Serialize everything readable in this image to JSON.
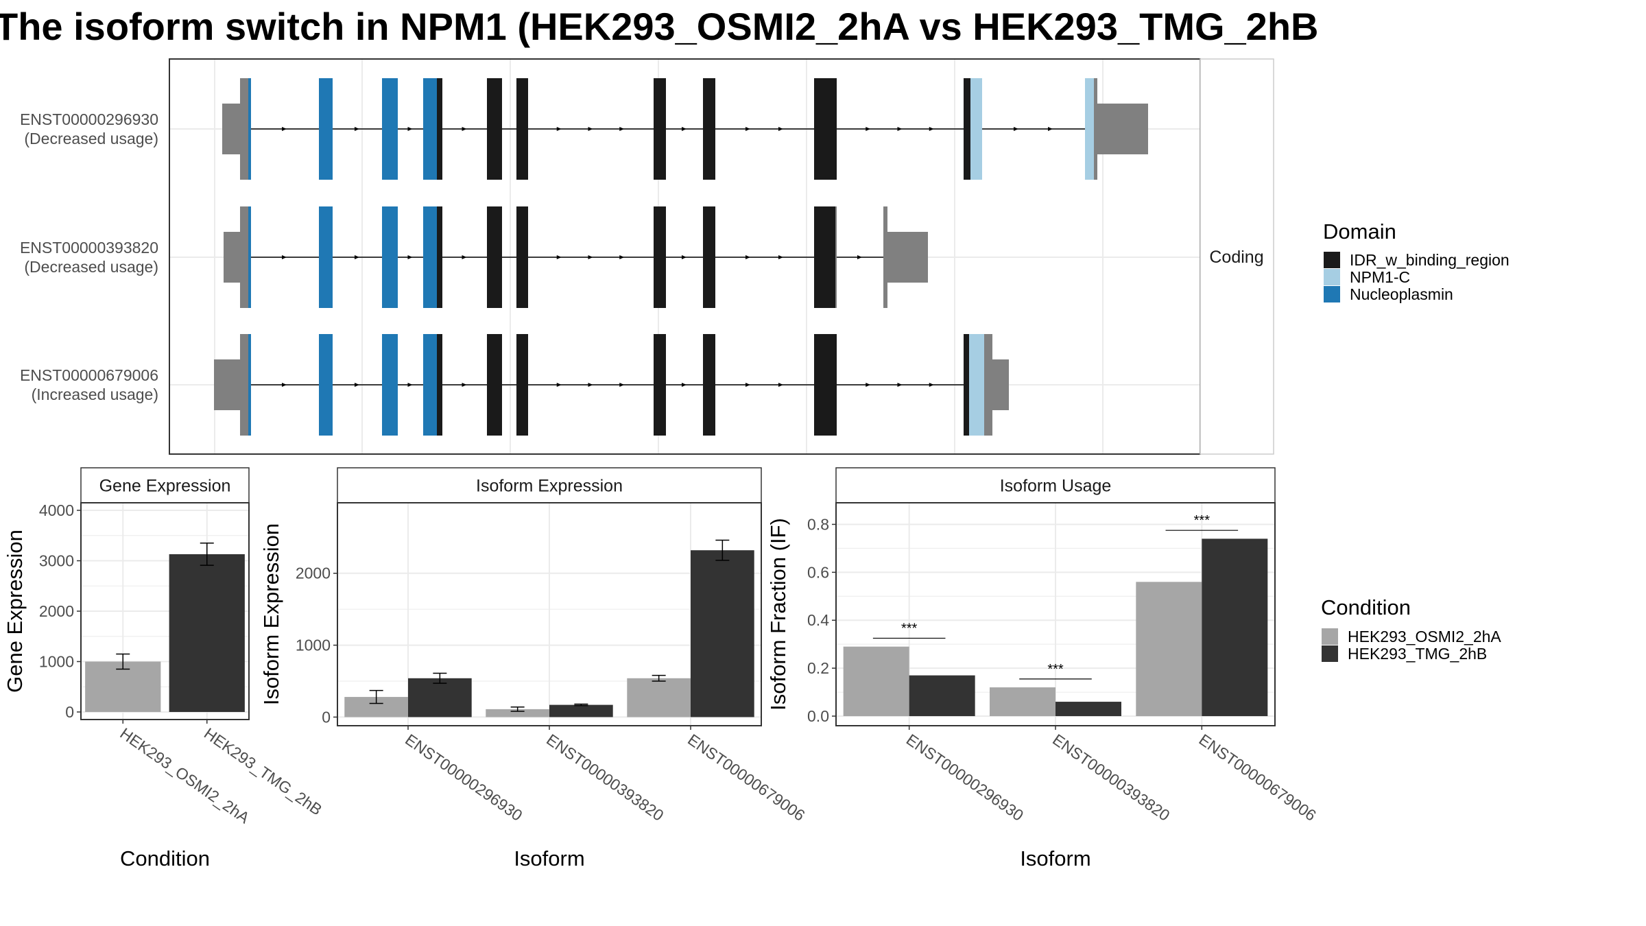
{
  "chart_data": [
    {
      "type": "gene-structure",
      "title": "The isoform switch in NPM1 (HEK293_OSMI2_2hA vs HEK293_TMG_2hB",
      "facet_label": "Coding",
      "isoforms": [
        {
          "id": "ENST00000296930",
          "note": "(Decreased usage)"
        },
        {
          "id": "ENST00000393820",
          "note": "(Decreased usage)"
        },
        {
          "id": "ENST00000679006",
          "note": "(Increased usage)"
        }
      ],
      "legend": {
        "title": "Domain",
        "items": [
          {
            "label": "IDR_w_binding_region",
            "color": "#1a1a1a"
          },
          {
            "label": "NPM1-C",
            "color": "#a6cee3"
          },
          {
            "label": "Nucleoplasmin",
            "color": "#1f78b4"
          }
        ]
      }
    },
    {
      "type": "bar",
      "title": "Gene Expression",
      "xlabel": "Condition",
      "ylabel": "Gene Expression",
      "categories": [
        "HEK293_OSMI2_2hA",
        "HEK293_TMG_2hB"
      ],
      "values": [
        1000,
        3130
      ],
      "errors": [
        150,
        220
      ],
      "ylim": [
        -150,
        4150
      ],
      "yticks": [
        0,
        1000,
        2000,
        3000,
        4000
      ]
    },
    {
      "type": "bar",
      "title": "Isoform Expression",
      "xlabel": "Isoform",
      "ylabel": "Isoform Expression",
      "categories": [
        "ENST00000296930",
        "ENST00000393820",
        "ENST00000679006"
      ],
      "series": [
        {
          "name": "HEK293_OSMI2_2hA",
          "values": [
            280,
            110,
            540
          ],
          "errors": [
            90,
            30,
            40
          ]
        },
        {
          "name": "HEK293_TMG_2hB",
          "values": [
            540,
            170,
            2320
          ],
          "errors": [
            70,
            10,
            140
          ]
        }
      ],
      "ylim": [
        -120,
        2980
      ],
      "yticks": [
        0,
        1000,
        2000
      ]
    },
    {
      "type": "bar",
      "title": "Isoform Usage",
      "xlabel": "Isoform",
      "ylabel": "Isoform Fraction (IF)",
      "categories": [
        "ENST00000296930",
        "ENST00000393820",
        "ENST00000679006"
      ],
      "series": [
        {
          "name": "HEK293_OSMI2_2hA",
          "values": [
            0.29,
            0.12,
            0.56
          ]
        },
        {
          "name": "HEK293_TMG_2hB",
          "values": [
            0.17,
            0.06,
            0.74
          ]
        }
      ],
      "significance": [
        "***",
        "***",
        "***"
      ],
      "ylim": [
        -0.04,
        0.89
      ],
      "yticks": [
        0.0,
        0.2,
        0.4,
        0.6,
        0.8
      ],
      "ytick_labels": [
        "0.0",
        "0.2",
        "0.4",
        "0.6",
        "0.8"
      ]
    }
  ],
  "condition_legend": {
    "title": "Condition",
    "items": [
      {
        "label": "HEK293_OSMI2_2hA",
        "color": "#a6a6a6"
      },
      {
        "label": "HEK293_TMG_2hB",
        "color": "#333333"
      }
    ]
  }
}
